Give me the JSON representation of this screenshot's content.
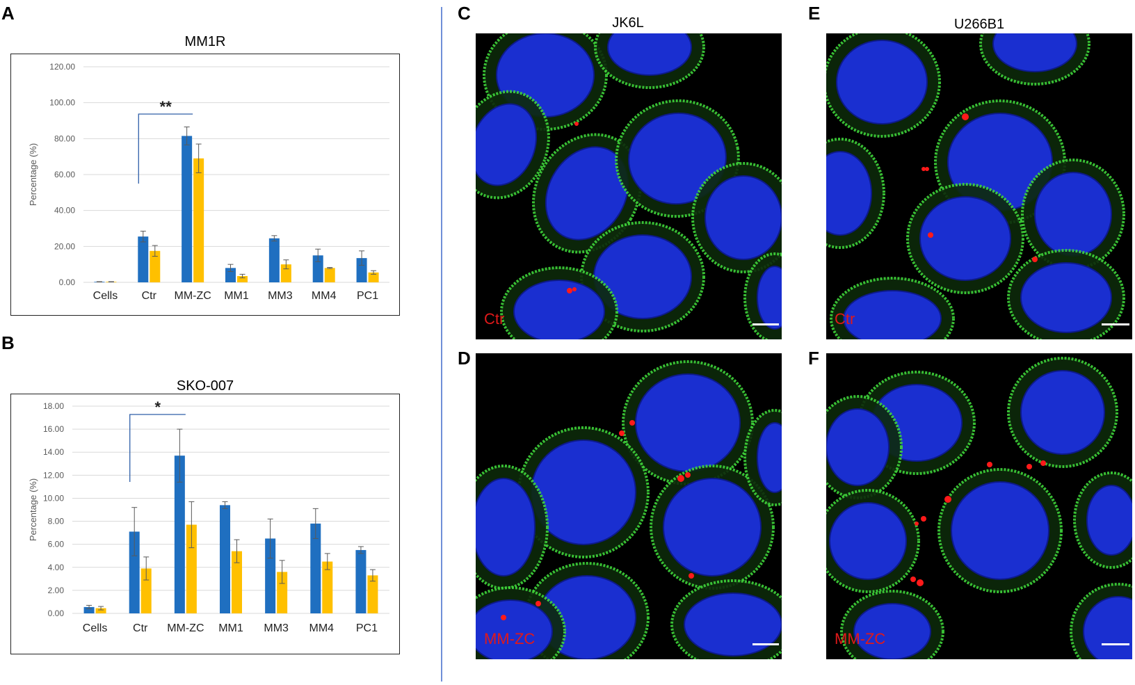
{
  "panels": {
    "a": "A",
    "b": "B",
    "c": "C",
    "d": "D",
    "e": "E",
    "f": "F"
  },
  "columns": {
    "left": "JK6L",
    "right": "U266B1"
  },
  "micrographs": {
    "c_label": "Ctr",
    "d_label": "MM-ZC",
    "e_label": "Ctr",
    "f_label": "MM-ZC"
  },
  "colors": {
    "series1": "#1f6fc0",
    "series2": "#ffc000",
    "label_red": "#e0191a",
    "nucleus": "#1a2fd0",
    "membrane": "#3fd43a",
    "vesicle": "#ff1a1a",
    "divider": "#6f8fd8"
  },
  "chart_data": [
    {
      "type": "bar",
      "title": "MM1R",
      "ylabel": "Percentage (%)",
      "xlabel": "",
      "categories": [
        "Cells",
        "Ctr",
        "MM-ZC",
        "MM1",
        "MM3",
        "MM4",
        "PC1"
      ],
      "series": [
        {
          "values": [
            0.3,
            25.5,
            81.5,
            8.0,
            24.5,
            15.0,
            13.5
          ],
          "errors": [
            0.1,
            3.0,
            5.0,
            2.0,
            1.5,
            3.5,
            4.0
          ]
        },
        {
          "values": [
            0.3,
            17.5,
            69.0,
            3.5,
            10.0,
            8.0,
            5.5
          ],
          "errors": [
            0.1,
            3.0,
            8.0,
            1.0,
            2.5,
            0.3,
            1.0
          ]
        }
      ],
      "ylim": [
        0,
        120
      ],
      "yticks": [
        "0.00",
        "20.00",
        "40.00",
        "60.00",
        "80.00",
        "100.00",
        "120.00"
      ],
      "grid": true,
      "annotation": "**"
    },
    {
      "type": "bar",
      "title": "SKO-007",
      "ylabel": "Percentage (%)",
      "xlabel": "",
      "categories": [
        "Cells",
        "Ctr",
        "MM-ZC",
        "MM1",
        "MM3",
        "MM4",
        "PC1"
      ],
      "series": [
        {
          "values": [
            0.55,
            7.1,
            13.7,
            9.4,
            6.5,
            7.8,
            5.5
          ],
          "errors": [
            0.15,
            2.1,
            2.3,
            0.3,
            1.7,
            1.3,
            0.3
          ]
        },
        {
          "values": [
            0.45,
            3.9,
            7.7,
            5.4,
            3.6,
            4.5,
            3.3
          ],
          "errors": [
            0.15,
            1.0,
            2.0,
            1.0,
            1.0,
            0.7,
            0.5
          ]
        }
      ],
      "ylim": [
        0,
        18
      ],
      "yticks": [
        "0.00",
        "2.00",
        "4.00",
        "6.00",
        "8.00",
        "10.00",
        "12.00",
        "14.00",
        "16.00",
        "18.00"
      ],
      "grid": true,
      "annotation": "*"
    }
  ]
}
